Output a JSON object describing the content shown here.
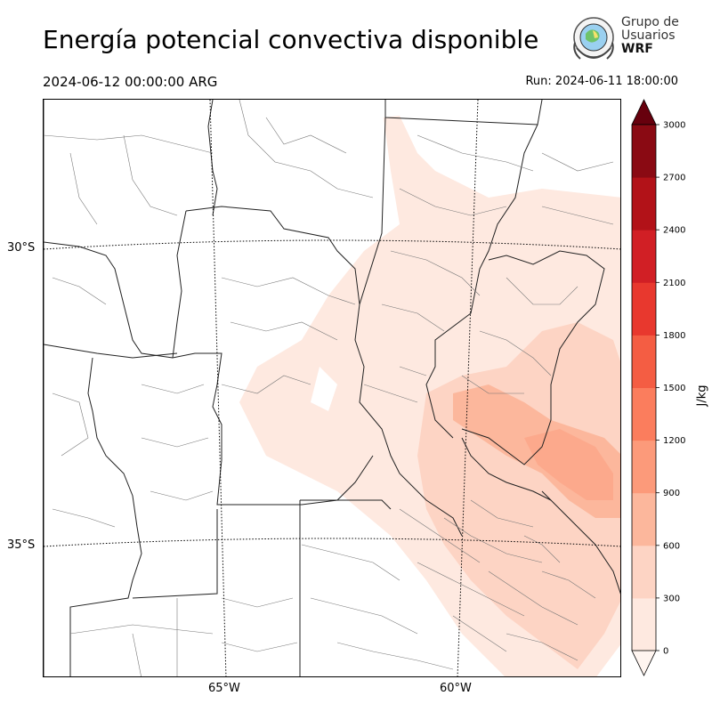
{
  "header": {
    "title": "Energía potencial convectiva disponible",
    "valid_time": "2024-06-12 00:00:00 ARG",
    "run_time": "Run: 2024-06-11 18:00:00"
  },
  "logo": {
    "line1": "Grupo de",
    "line2": "Usuarios",
    "line3": "WRF"
  },
  "map": {
    "lat_labels": [
      "30°S",
      "35°S"
    ],
    "lon_labels": [
      "65°W",
      "60°W"
    ]
  },
  "colorbar": {
    "unit_label": "J/kg",
    "ticks": [
      "0",
      "300",
      "600",
      "900",
      "1200",
      "1500",
      "1800",
      "2100",
      "2400",
      "2700",
      "3000"
    ],
    "colors": [
      "#fee9e0",
      "#fdd4c4",
      "#fcb79c",
      "#fc9a7a",
      "#fb7d5d",
      "#f45d43",
      "#e8382e",
      "#d11f25",
      "#b21218",
      "#8a0a13"
    ],
    "extend_low_color": "#fff5f0",
    "extend_high_color": "#67000d"
  }
}
